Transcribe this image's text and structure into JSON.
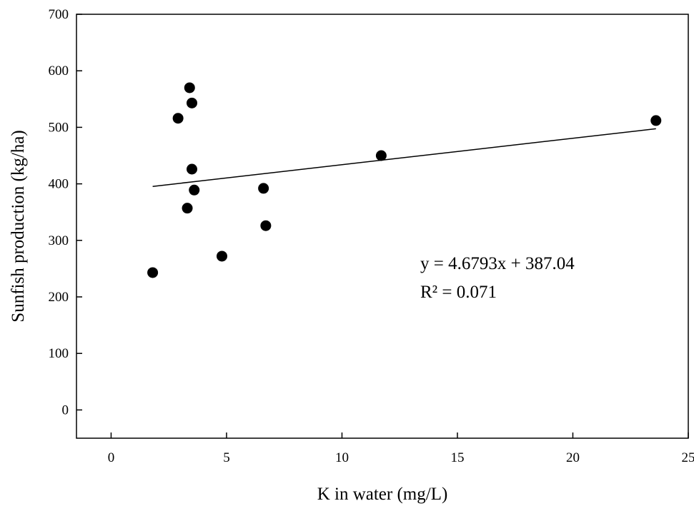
{
  "chart_data": {
    "type": "scatter",
    "title": "",
    "xlabel": "K in water (mg/L)",
    "ylabel": "Sunfish production (kg/ha)",
    "xlim": [
      -1.5,
      25
    ],
    "ylim": [
      -50,
      700
    ],
    "xticks": [
      0,
      5,
      10,
      15,
      20,
      25
    ],
    "yticks": [
      0,
      100,
      200,
      300,
      400,
      500,
      600,
      700
    ],
    "grid": false,
    "legend": "none",
    "marker_color": "#000000",
    "series": [
      {
        "points": [
          {
            "x": 1.8,
            "y": 243
          },
          {
            "x": 2.9,
            "y": 516
          },
          {
            "x": 3.3,
            "y": 357
          },
          {
            "x": 3.4,
            "y": 570
          },
          {
            "x": 3.5,
            "y": 426
          },
          {
            "x": 3.5,
            "y": 543
          },
          {
            "x": 3.6,
            "y": 389
          },
          {
            "x": 4.8,
            "y": 272
          },
          {
            "x": 6.6,
            "y": 392
          },
          {
            "x": 6.7,
            "y": 326
          },
          {
            "x": 11.7,
            "y": 450
          },
          {
            "x": 23.6,
            "y": 512
          }
        ]
      }
    ],
    "trendline": {
      "slope": 4.6793,
      "intercept": 387.04,
      "x_range": [
        1.8,
        23.6
      ]
    },
    "annotations": {
      "equation": "y = 4.6793x + 387.04",
      "r_squared": "R² = 0.071"
    }
  }
}
